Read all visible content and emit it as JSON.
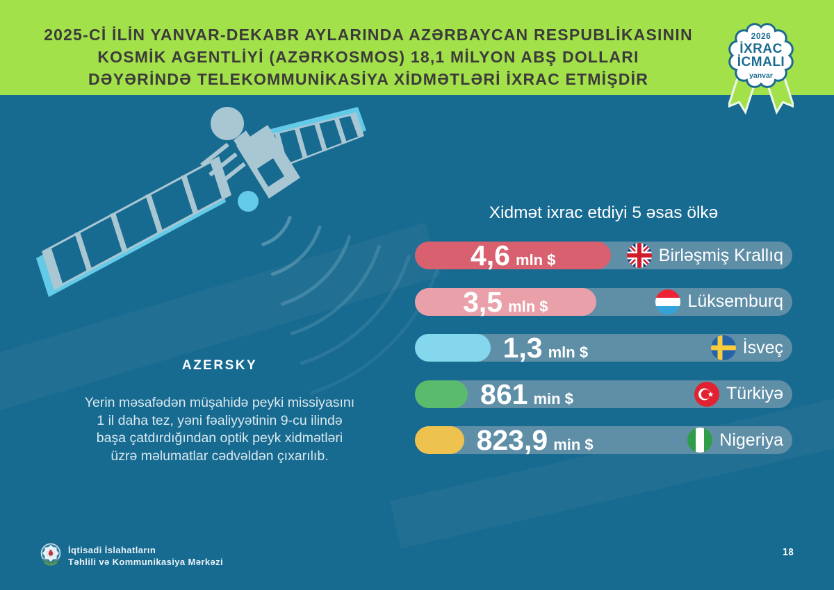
{
  "header": {
    "title_lines": [
      "2025-Cİ İLİN YANVAR-DEKABR AYLARINDA AZƏRBAYCAN RESPUBLİKASININ",
      "KOSMİK AGENTLİYİ (AZƏRKOSMOS) 18,1 MİLYON ABŞ DOLLARI",
      "DƏYƏRİNDƏ TELEKOMMUNİKASİYA XİDMƏTLƏRİ İXRAC ETMİŞDİR"
    ]
  },
  "badge": {
    "year": "2026",
    "title_line1": "İXRAC",
    "title_line2": "İCMALI",
    "subtitle": "yanvar"
  },
  "satellite": {
    "label": "AZERSKY"
  },
  "note": {
    "lines": [
      "Yerin məsafədən müşahidə peyki missiyasını",
      "1 il daha tez, yəni fəaliyyətinin 9-cu ilində",
      "başa çatdırdığından optik peyk xidmətləri",
      "üzrə məlumatlar cədvəldən çıxarılıb."
    ]
  },
  "chart_data": {
    "type": "bar",
    "title": "Xidmət ixrac etdiyi 5 əsas ölkə",
    "orientation": "horizontal",
    "unit_full": "mln $",
    "unit_small": "min $",
    "bars": [
      {
        "value": "4,6",
        "unit": "mln $",
        "numeric_mln_usd": 4.6,
        "country": "Birləşmiş Krallıq",
        "flag": "united-kingdom",
        "fill_color": "#d9606e",
        "fill_pct": 52,
        "label_inside": true
      },
      {
        "value": "3,5",
        "unit": "mln $",
        "numeric_mln_usd": 3.5,
        "country": "Lüksemburq",
        "flag": "luxembourg",
        "fill_color": "#e9a0a9",
        "fill_pct": 48,
        "label_inside": true
      },
      {
        "value": "1,3",
        "unit": "mln $",
        "numeric_mln_usd": 1.3,
        "country": "İsveç",
        "flag": "sweden",
        "fill_color": "#84d7ec",
        "fill_pct": 20,
        "label_inside": false
      },
      {
        "value": "861",
        "unit": "min $",
        "numeric_mln_usd": 0.861,
        "country": "Türkiyə",
        "flag": "turkey",
        "fill_color": "#5bbb6c",
        "fill_pct": 14,
        "label_inside": false
      },
      {
        "value": "823,9",
        "unit": "min $",
        "numeric_mln_usd": 0.8239,
        "country": "Nigeriya",
        "flag": "nigeria",
        "fill_color": "#eec24f",
        "fill_pct": 13,
        "label_inside": false
      }
    ]
  },
  "footer": {
    "org_lines": [
      "İqtisadi İslahatların",
      "Təhlili və Kommunikasiya Mərkəzi"
    ],
    "page_number": "18"
  },
  "theme": {
    "background": "#176a90",
    "header_bg": "#a3e14b",
    "header_text": "#3c3b3a",
    "track": "#5f8ea7",
    "badge_teal": "#1b6b90",
    "satellite_light": "#a9c6d3",
    "satellite_cyan": "#63cae8",
    "text_light": "#d9e9f0"
  }
}
